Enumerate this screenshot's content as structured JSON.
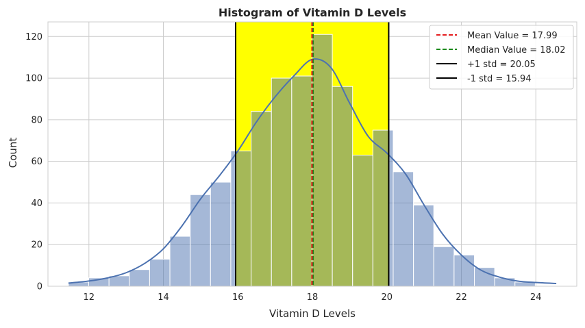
{
  "chart_data": {
    "type": "bar",
    "title": "Histogram of Vitamin D Levels",
    "xlabel": "Vitamin D Levels",
    "ylabel": "Count",
    "xlim": [
      10.9,
      25.1
    ],
    "ylim": [
      0,
      127
    ],
    "x_ticks": [
      12,
      14,
      16,
      18,
      20,
      22,
      24
    ],
    "y_ticks": [
      0,
      20,
      40,
      60,
      80,
      100,
      120
    ],
    "grid": true,
    "legend_position": "top-right",
    "bin_start": 11.45,
    "bin_width": 0.545,
    "counts": [
      2,
      4,
      5,
      8,
      13,
      24,
      44,
      50,
      65,
      84,
      100,
      101,
      121,
      96,
      63,
      75,
      55,
      39,
      19,
      15,
      9,
      4,
      2
    ],
    "kde": {
      "x": [
        11.45,
        12.0,
        12.5,
        13.0,
        13.5,
        14.0,
        14.5,
        15.0,
        15.5,
        16.0,
        16.5,
        17.0,
        17.5,
        18.0,
        18.5,
        19.0,
        19.5,
        20.0,
        20.5,
        21.0,
        21.5,
        22.0,
        22.5,
        23.0,
        23.5,
        24.0,
        24.55
      ],
      "y": [
        1.5,
        2.5,
        4,
        6.5,
        11,
        18,
        29,
        42,
        53,
        65,
        79,
        91,
        101,
        109,
        105,
        88,
        72,
        64,
        54,
        39,
        25,
        15,
        8,
        4.5,
        2.5,
        1.8,
        1.3
      ]
    },
    "std_band": {
      "from": 15.94,
      "to": 20.05,
      "color": "#ffff00"
    },
    "colors": {
      "bars": "#4c72b0",
      "kde": "#4c72b0",
      "mean": "#d62728",
      "median": "#2ca02c",
      "std": "#000000"
    },
    "lines": [
      {
        "label": "Mean Value = 17.99",
        "x": 17.99,
        "style": "dashed",
        "color": "#e41a1c"
      },
      {
        "label": "Median Value = 18.02",
        "x": 18.02,
        "style": "dashed",
        "color": "#1b8a1b"
      },
      {
        "label": "+1 std = 20.05",
        "x": 20.05,
        "style": "solid",
        "color": "#000000"
      },
      {
        "label": "-1 std = 15.94",
        "x": 15.94,
        "style": "solid",
        "color": "#000000"
      }
    ]
  }
}
